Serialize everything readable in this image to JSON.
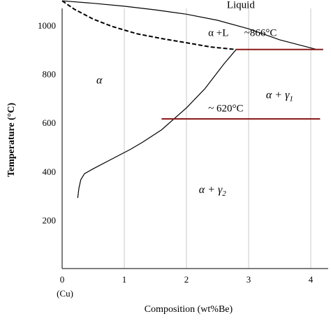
{
  "chart_data": {
    "type": "line",
    "title": "",
    "xlabel": "Composition (wt%Be)",
    "ylabel": "Temperature (°C)",
    "xlim": [
      0,
      4.2
    ],
    "ylim": [
      0,
      1150
    ],
    "x_ticks": [
      0,
      1,
      2,
      3,
      4
    ],
    "x_tick_labels": [
      "0",
      "1",
      "2",
      "3",
      "4"
    ],
    "x_sub_label": "(Cu)",
    "y_ticks": [
      200,
      400,
      600,
      800,
      1000
    ],
    "y_tick_labels": [
      "200",
      "400",
      "600",
      "800",
      "1000"
    ],
    "grid": "vertical",
    "series": [
      {
        "style": "solid",
        "color": "#000000",
        "points": [
          [
            0.0,
            1100
          ],
          [
            0.5,
            1090
          ],
          [
            1.0,
            1078
          ],
          [
            1.5,
            1063
          ],
          [
            2.0,
            1045
          ],
          [
            2.5,
            1020
          ],
          [
            3.0,
            985
          ],
          [
            3.5,
            940
          ],
          [
            4.1,
            900
          ]
        ]
      },
      {
        "style": "dashed",
        "color": "#000000",
        "points": [
          [
            0.0,
            1100
          ],
          [
            0.2,
            1065
          ],
          [
            0.5,
            1025
          ],
          [
            0.8,
            995
          ],
          [
            1.2,
            965
          ],
          [
            1.6,
            945
          ],
          [
            2.0,
            928
          ],
          [
            2.4,
            910
          ],
          [
            2.8,
            900
          ]
        ]
      },
      {
        "style": "solid",
        "color": "#000000",
        "points": [
          [
            0.25,
            290
          ],
          [
            0.27,
            330
          ],
          [
            0.3,
            365
          ],
          [
            0.36,
            390
          ],
          [
            0.5,
            410
          ],
          [
            0.8,
            450
          ],
          [
            1.1,
            490
          ],
          [
            1.3,
            520
          ],
          [
            1.6,
            570
          ],
          [
            2.0,
            660
          ],
          [
            2.3,
            740
          ],
          [
            2.6,
            840
          ],
          [
            2.8,
            900
          ]
        ]
      },
      {
        "style": "solid",
        "color": "#8b1a1a",
        "points": [
          [
            2.8,
            900
          ],
          [
            4.2,
            900
          ]
        ]
      },
      {
        "style": "solid",
        "color": "#8b1a1a",
        "points": [
          [
            1.6,
            615
          ],
          [
            4.15,
            615
          ]
        ]
      }
    ],
    "annotations": [
      {
        "id": "liquid",
        "text": "Liquid",
        "x": 2.65,
        "y": 1070,
        "style": "normal"
      },
      {
        "id": "alpha-l",
        "text": "α +L",
        "x": 2.35,
        "y": 955,
        "style": "normal"
      },
      {
        "id": "eutectic-866",
        "text": "~866°C",
        "x": 2.93,
        "y": 955,
        "style": "normal"
      },
      {
        "id": "alpha",
        "text": "α",
        "x": 0.55,
        "y": 760,
        "style": "italic"
      },
      {
        "id": "alpha-gamma1-main",
        "text": "α + γ",
        "x": 3.28,
        "y": 700,
        "style": "italic",
        "sub": "1"
      },
      {
        "id": "eutectoid-620",
        "text": "~ 620°C",
        "x": 2.35,
        "y": 645,
        "style": "normal"
      },
      {
        "id": "alpha-gamma2-main",
        "text": "α + γ",
        "x": 2.2,
        "y": 310,
        "style": "italic",
        "sub": "2"
      }
    ]
  }
}
